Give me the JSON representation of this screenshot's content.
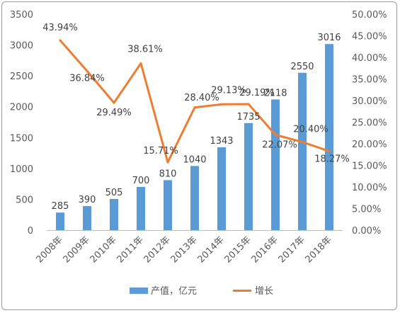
{
  "chart_data": {
    "type": "bar+line",
    "categories": [
      "2008年",
      "2009年",
      "2010年",
      "2011年",
      "2012年",
      "2013年",
      "2014年",
      "2015年",
      "2016年",
      "2017年",
      "2018年"
    ],
    "series": [
      {
        "name": "产值，亿元",
        "type": "bar",
        "axis": "left",
        "values": [
          285,
          390,
          505,
          700,
          810,
          1040,
          1343,
          1735,
          2118,
          2550,
          3016
        ],
        "labels": [
          "285",
          "390",
          "505",
          "700",
          "810",
          "1040",
          "1343",
          "1735",
          "2118",
          "2550",
          "3016"
        ]
      },
      {
        "name": "增长",
        "type": "line",
        "axis": "right",
        "values": [
          43.94,
          36.84,
          29.49,
          38.61,
          15.71,
          28.4,
          29.13,
          29.19,
          22.07,
          20.4,
          18.27
        ],
        "labels": [
          "43.94%",
          "36.84%",
          "29.49%",
          "38.61%",
          "15.71%",
          "28.40%",
          "29.13%",
          "29.19%",
          "22.07%",
          "20.40%",
          "18.27%"
        ]
      }
    ],
    "y_left": {
      "min": 0,
      "max": 3500,
      "ticks": [
        "0",
        "500",
        "1000",
        "1500",
        "2000",
        "2500",
        "3000",
        "3500"
      ]
    },
    "y_right": {
      "min": 0,
      "max": 50,
      "ticks": [
        "0.00%",
        "5.00%",
        "10.00%",
        "15.00%",
        "20.00%",
        "25.00%",
        "30.00%",
        "35.00%",
        "40.00%",
        "45.00%",
        "50.00%"
      ]
    },
    "grid": false,
    "legend_position": "bottom",
    "colors": {
      "bar": "#5b9bd5",
      "line": "#ed7d31"
    }
  }
}
